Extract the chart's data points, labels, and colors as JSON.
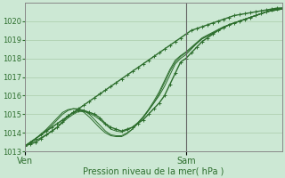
{
  "title": "",
  "xlabel": "Pression niveau de la mer( hPa )",
  "ylabel": "",
  "bg_color": "#cce8d4",
  "grid_color": "#aaccaa",
  "line_color": "#2d6e2d",
  "marker_color": "#2d6e2d",
  "ylim": [
    1013,
    1021
  ],
  "yticks": [
    1013,
    1014,
    1015,
    1016,
    1017,
    1018,
    1019,
    1020
  ],
  "xlim": [
    0,
    48
  ],
  "ven_x": 0,
  "sam_x": 30,
  "xtick_labels": [
    "Ven",
    "Sam"
  ],
  "xtick_positions": [
    0,
    30
  ],
  "lines": [
    {
      "x": [
        0,
        1,
        2,
        3,
        4,
        5,
        6,
        7,
        8,
        9,
        10,
        11,
        12,
        13,
        14,
        15,
        16,
        17,
        18,
        19,
        20,
        21,
        22,
        23,
        24,
        25,
        26,
        27,
        28,
        29,
        30,
        31,
        32,
        33,
        34,
        35,
        36,
        37,
        38,
        39,
        40,
        41,
        42,
        43,
        44,
        45,
        46,
        47,
        48
      ],
      "y": [
        1013.3,
        1013.5,
        1013.7,
        1013.9,
        1014.1,
        1014.3,
        1014.5,
        1014.7,
        1014.9,
        1015.1,
        1015.3,
        1015.5,
        1015.7,
        1015.9,
        1016.1,
        1016.3,
        1016.5,
        1016.7,
        1016.9,
        1017.1,
        1017.3,
        1017.5,
        1017.7,
        1017.9,
        1018.1,
        1018.3,
        1018.5,
        1018.7,
        1018.9,
        1019.1,
        1019.3,
        1019.5,
        1019.6,
        1019.7,
        1019.8,
        1019.9,
        1020.0,
        1020.1,
        1020.2,
        1020.3,
        1020.35,
        1020.4,
        1020.45,
        1020.5,
        1020.55,
        1020.6,
        1020.65,
        1020.7,
        1020.7
      ],
      "marker": true,
      "lw": 1.0
    },
    {
      "x": [
        0,
        1,
        2,
        3,
        4,
        5,
        6,
        7,
        8,
        9,
        10,
        11,
        12,
        13,
        14,
        15,
        16,
        17,
        18,
        19,
        20,
        21,
        22,
        23,
        24,
        25,
        26,
        27,
        28,
        29,
        30,
        31,
        32,
        33,
        34,
        35,
        36,
        37,
        38,
        39,
        40,
        41,
        42,
        43,
        44,
        45,
        46,
        47,
        48
      ],
      "y": [
        1013.3,
        1013.4,
        1013.5,
        1013.7,
        1013.9,
        1014.1,
        1014.3,
        1014.6,
        1014.9,
        1015.1,
        1015.2,
        1015.2,
        1015.1,
        1015.0,
        1014.8,
        1014.5,
        1014.3,
        1014.2,
        1014.1,
        1014.2,
        1014.3,
        1014.5,
        1014.7,
        1015.0,
        1015.3,
        1015.6,
        1016.0,
        1016.6,
        1017.2,
        1017.8,
        1018.0,
        1018.3,
        1018.6,
        1018.9,
        1019.1,
        1019.3,
        1019.5,
        1019.65,
        1019.8,
        1019.9,
        1020.0,
        1020.1,
        1020.2,
        1020.3,
        1020.4,
        1020.5,
        1020.6,
        1020.65,
        1020.7
      ],
      "marker": true,
      "lw": 1.0
    },
    {
      "x": [
        0,
        1,
        2,
        3,
        4,
        5,
        6,
        7,
        8,
        9,
        10,
        11,
        12,
        13,
        14,
        15,
        16,
        17,
        18,
        19,
        20,
        21,
        22,
        23,
        24,
        25,
        26,
        27,
        28,
        29,
        30,
        31,
        32,
        33,
        34,
        35,
        36,
        37,
        38,
        39,
        40,
        41,
        42,
        43,
        44,
        45,
        46,
        47,
        48
      ],
      "y": [
        1013.3,
        1013.45,
        1013.6,
        1013.75,
        1013.9,
        1014.1,
        1014.3,
        1014.55,
        1014.8,
        1015.0,
        1015.15,
        1015.15,
        1015.05,
        1014.9,
        1014.7,
        1014.45,
        1014.2,
        1014.1,
        1014.05,
        1014.15,
        1014.3,
        1014.55,
        1014.85,
        1015.2,
        1015.6,
        1016.0,
        1016.5,
        1017.1,
        1017.7,
        1018.0,
        1018.2,
        1018.5,
        1018.8,
        1019.05,
        1019.2,
        1019.35,
        1019.5,
        1019.65,
        1019.8,
        1019.9,
        1020.0,
        1020.1,
        1020.2,
        1020.3,
        1020.4,
        1020.5,
        1020.55,
        1020.6,
        1020.65
      ],
      "marker": false,
      "lw": 0.7
    },
    {
      "x": [
        0,
        1,
        2,
        3,
        4,
        5,
        6,
        7,
        8,
        9,
        10,
        11,
        12,
        13,
        14,
        15,
        16,
        17,
        18,
        19,
        20,
        21,
        22,
        23,
        24,
        25,
        26,
        27,
        28,
        29,
        30,
        31,
        32,
        33,
        34,
        35,
        36,
        37,
        38,
        39,
        40,
        41,
        42,
        43,
        44,
        45,
        46,
        47,
        48
      ],
      "y": [
        1013.3,
        1013.5,
        1013.7,
        1013.9,
        1014.15,
        1014.4,
        1014.7,
        1015.0,
        1015.2,
        1015.3,
        1015.3,
        1015.2,
        1015.0,
        1014.7,
        1014.4,
        1014.1,
        1013.9,
        1013.85,
        1013.85,
        1014.0,
        1014.2,
        1014.5,
        1014.8,
        1015.2,
        1015.6,
        1016.1,
        1016.7,
        1017.3,
        1017.8,
        1018.1,
        1018.3,
        1018.55,
        1018.8,
        1019.05,
        1019.2,
        1019.35,
        1019.5,
        1019.65,
        1019.8,
        1019.9,
        1020.0,
        1020.1,
        1020.2,
        1020.3,
        1020.4,
        1020.5,
        1020.55,
        1020.6,
        1020.65
      ],
      "marker": false,
      "lw": 0.7
    },
    {
      "x": [
        0,
        1,
        2,
        3,
        4,
        5,
        6,
        7,
        8,
        9,
        10,
        11,
        12,
        13,
        14,
        15,
        16,
        17,
        18,
        19,
        20,
        21,
        22,
        23,
        24,
        25,
        26,
        27,
        28,
        29,
        30,
        31,
        32,
        33,
        34,
        35,
        36,
        37,
        38,
        39,
        40,
        41,
        42,
        43,
        44,
        45,
        46,
        47,
        48
      ],
      "y": [
        1013.3,
        1013.5,
        1013.7,
        1013.95,
        1014.2,
        1014.5,
        1014.8,
        1015.1,
        1015.25,
        1015.3,
        1015.25,
        1015.1,
        1014.85,
        1014.55,
        1014.25,
        1014.0,
        1013.85,
        1013.8,
        1013.8,
        1013.95,
        1014.2,
        1014.5,
        1014.85,
        1015.25,
        1015.7,
        1016.2,
        1016.8,
        1017.4,
        1017.9,
        1018.15,
        1018.35,
        1018.6,
        1018.85,
        1019.1,
        1019.25,
        1019.4,
        1019.55,
        1019.7,
        1019.8,
        1019.9,
        1020.0,
        1020.1,
        1020.2,
        1020.3,
        1020.4,
        1020.5,
        1020.55,
        1020.6,
        1020.65
      ],
      "marker": false,
      "lw": 0.7
    }
  ],
  "vline_x": 30,
  "vline_color": "#666666"
}
